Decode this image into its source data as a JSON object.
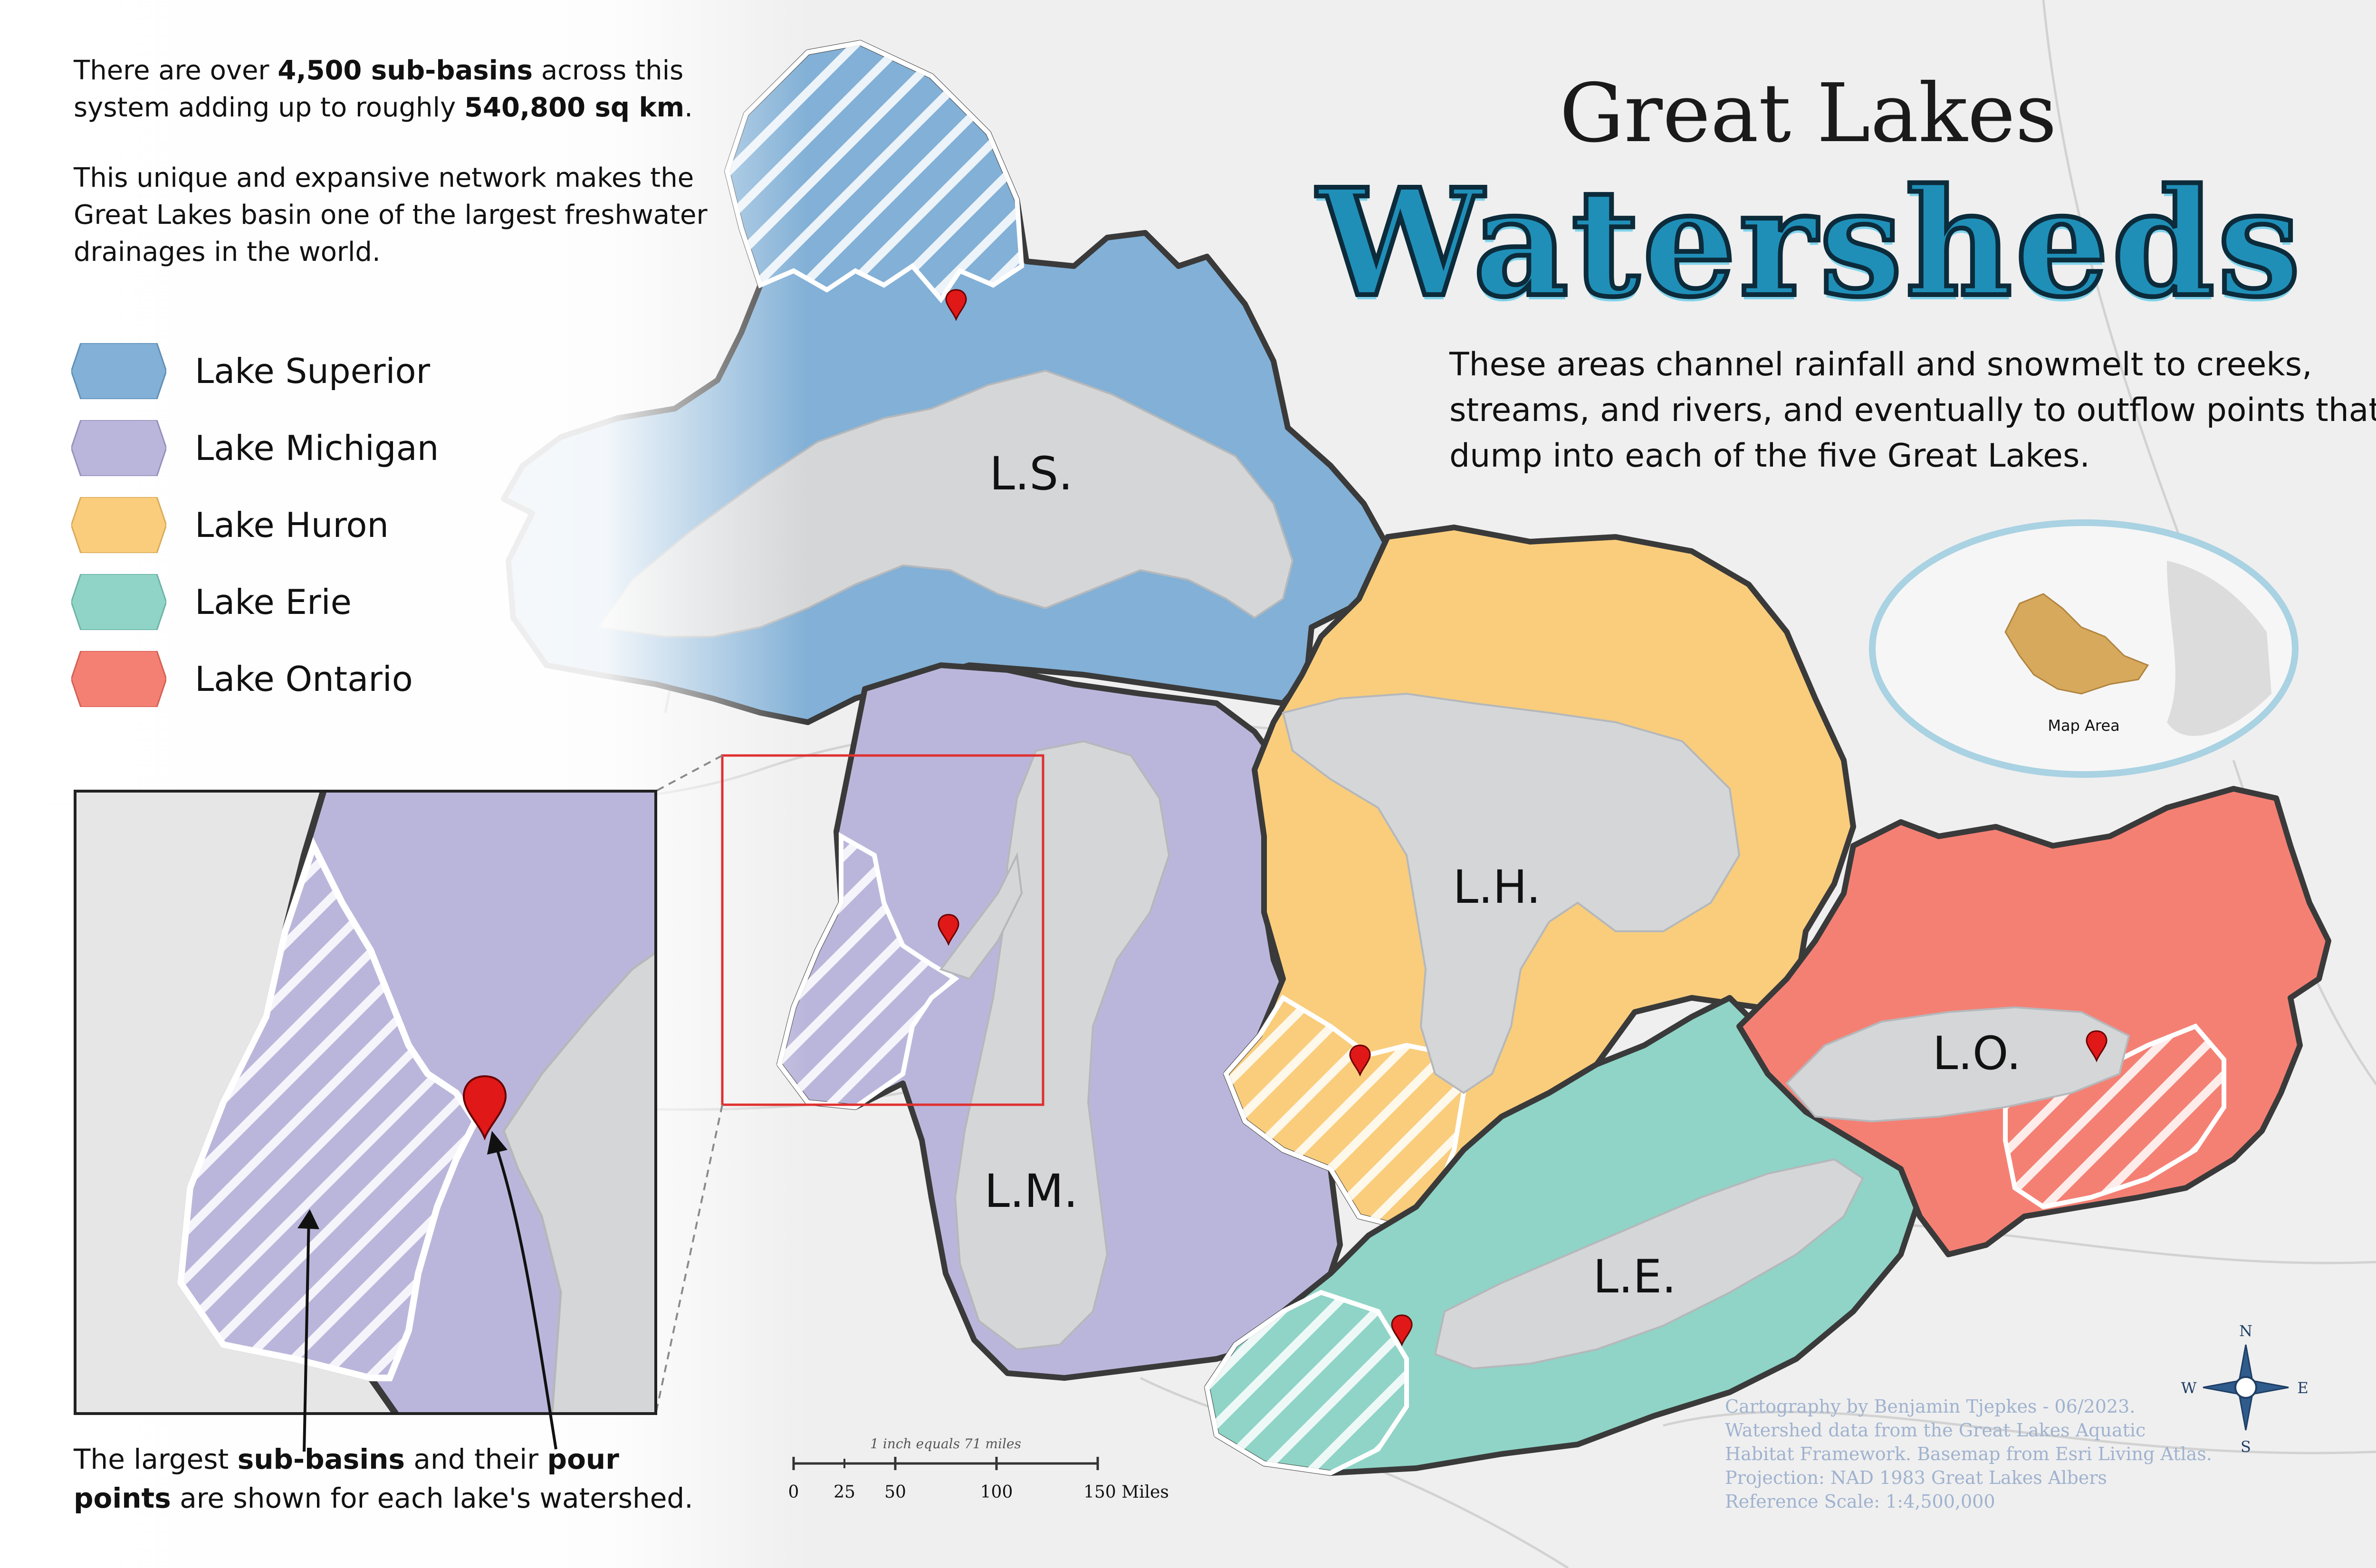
{
  "intro": {
    "p1_pre": "There are over ",
    "p1_b1": "4,500 sub-basins",
    "p1_mid": " across this system adding up to roughly ",
    "p1_b2": "540,800 sq km",
    "p1_post": ".",
    "p2": "This unique and expansive network makes the Great Lakes basin one of the largest freshwater drainages in the world."
  },
  "legend": [
    {
      "label": "Lake Superior",
      "color": "#80aed3"
    },
    {
      "label": "Lake Michigan",
      "color": "#b9b5da"
    },
    {
      "label": "Lake Huron",
      "color": "#f9cc7a"
    },
    {
      "label": "Lake Erie",
      "color": "#8dd3c6"
    },
    {
      "label": "Lake Ontario",
      "color": "#f47f73"
    }
  ],
  "title": {
    "line1": "Great Lakes",
    "line2": "Watersheds"
  },
  "description": "These areas channel rainfall and snowmelt to creeks, streams, and rivers, and eventually to outflow points that dump into each of the five Great Lakes.",
  "lake_labels": {
    "ls": "L.S.",
    "lm": "L.M.",
    "lh": "L.H.",
    "le": "L.E.",
    "lo": "L.O."
  },
  "inset_caption": {
    "pre": "The largest ",
    "b1": "sub-basins",
    "mid": " and their ",
    "b2": "pour points",
    "post": " are shown for each lake's watershed."
  },
  "overview_map": {
    "label": "Map Area"
  },
  "scale_bar": {
    "note": "1 inch equals 71 miles",
    "ticks": [
      "0",
      "25",
      "50",
      "100",
      "150 Miles"
    ]
  },
  "compass": {
    "n": "N",
    "s": "S",
    "e": "E",
    "w": "W"
  },
  "credits": [
    "Cartography by Benjamin Tjepkes - 06/2023.",
    "Watershed data from the Great Lakes Aquatic",
    "Habitat Framework. Basemap from Esri Living Atlas.",
    "Projection: NAD 1983 Great Lakes Albers",
    "Reference Scale: 1:4,500,000"
  ]
}
